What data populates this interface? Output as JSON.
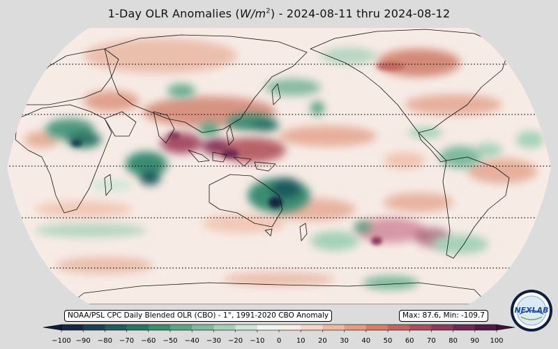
{
  "title": {
    "prefix": "1-Day OLR Anomalies (",
    "unit_base": "W/m",
    "unit_exp": "2",
    "suffix": ") - 2024-08-11 thru 2024-08-12"
  },
  "source_label": "NOAA/PSL CPC Daily Blended OLR (CBO) - 1°, 1991-2020 CBO Anomaly",
  "stats_label": "Max: 87.6,  Min: -109.7",
  "logo_text": "NEXLAB",
  "colorbar": {
    "ticks": [
      "−100",
      "−90",
      "−80",
      "−70",
      "−60",
      "−50",
      "−40",
      "−30",
      "−20",
      "−10",
      "0",
      "10",
      "20",
      "30",
      "40",
      "50",
      "60",
      "70",
      "80",
      "90",
      "100"
    ],
    "colors": [
      "#132645",
      "#1c3f55",
      "#1f5a5e",
      "#257563",
      "#3a8c6e",
      "#5aa383",
      "#7fba9c",
      "#a6d1b8",
      "#cfe6d6",
      "#f1f6f2",
      "#fbeee8",
      "#f6d6c8",
      "#efb9a2",
      "#e49c80",
      "#d47f67",
      "#c06660",
      "#a74f5d",
      "#8c3a5b",
      "#6e2854",
      "#521a49"
    ]
  },
  "map": {
    "projection": "Robinson",
    "central_longitude": 180,
    "gridlines": "dotted latitude lines every 30°"
  }
}
